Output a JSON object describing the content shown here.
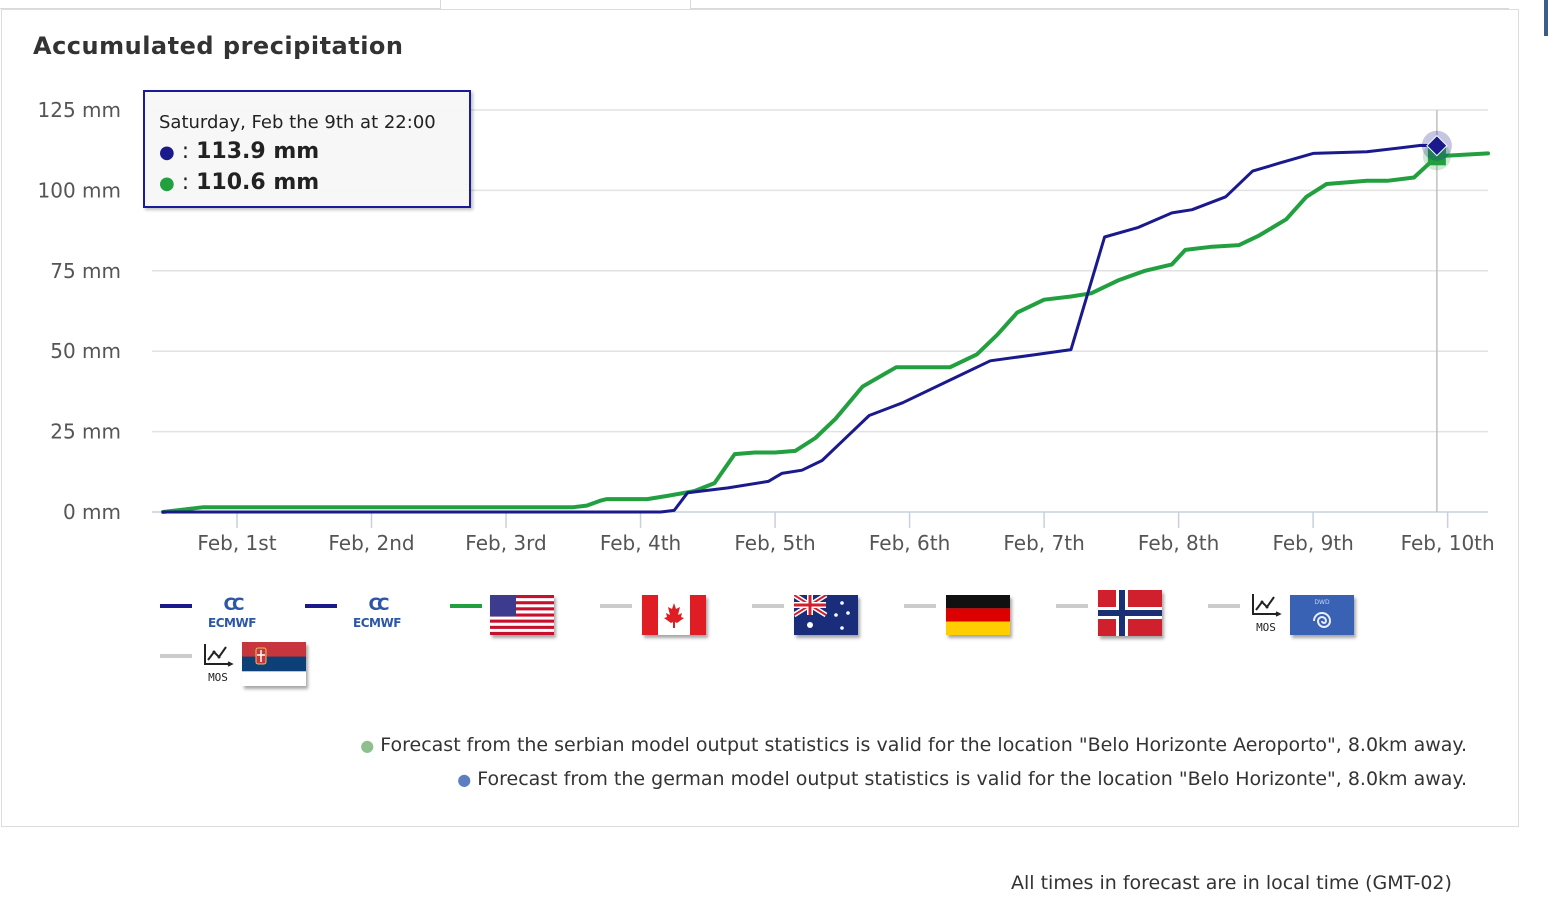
{
  "title": "Accumulated precipitation",
  "tooltip": {
    "date": "Saturday, Feb the 9th at 22:00",
    "rows": [
      {
        "bullet": "●",
        "sep": " : ",
        "value": "113.9",
        "unit": " mm",
        "color": "#1a1a8c"
      },
      {
        "bullet": "●",
        "sep": " : ",
        "value": "110.6",
        "unit": " mm",
        "color": "#22a040"
      }
    ]
  },
  "chart_data": {
    "type": "line",
    "title": "Accumulated precipitation",
    "ylabel": "",
    "yunit": "mm",
    "ylim": [
      0,
      125
    ],
    "yticks": [
      0,
      25,
      50,
      75,
      100,
      125
    ],
    "ytick_labels": [
      "0 mm",
      "25 mm",
      "50 mm",
      "75 mm",
      "100 mm",
      "125 mm"
    ],
    "xlim": [
      0.45,
      10.3
    ],
    "xticks": [
      1,
      2,
      3,
      4,
      5,
      6,
      7,
      8,
      9,
      10
    ],
    "xtick_labels": [
      "Feb, 1st",
      "Feb, 2nd",
      "Feb, 3rd",
      "Feb, 4th",
      "Feb, 5th",
      "Feb, 6th",
      "Feb, 7th",
      "Feb, 8th",
      "Feb, 9th",
      "Feb, 10th"
    ],
    "grid": true,
    "crosshair_x": 9.92,
    "series": [
      {
        "color": "#1a1a8c",
        "x": [
          0.45,
          0.95,
          3.7,
          4.15,
          4.25,
          4.35,
          4.65,
          4.95,
          5.05,
          5.2,
          5.35,
          5.5,
          5.7,
          5.95,
          6.3,
          6.6,
          6.95,
          7.2,
          7.45,
          7.7,
          7.95,
          8.1,
          8.35,
          8.55,
          8.75,
          9.0,
          9.4,
          9.8,
          9.92
        ],
        "y": [
          0,
          0,
          0,
          0,
          0.5,
          6,
          7.5,
          9.5,
          12,
          13,
          16,
          22,
          30,
          34,
          41,
          47,
          49,
          50.5,
          85.5,
          88.5,
          93,
          94,
          98,
          106,
          108.5,
          111.5,
          112,
          114,
          113.9
        ]
      },
      {
        "color": "#22a040",
        "x": [
          0.45,
          0.75,
          3.5,
          3.6,
          3.7,
          3.75,
          3.9,
          4.05,
          4.2,
          4.4,
          4.55,
          4.7,
          4.85,
          5.0,
          5.15,
          5.3,
          5.45,
          5.65,
          5.9,
          6.0,
          6.3,
          6.5,
          6.65,
          6.8,
          7.0,
          7.2,
          7.35,
          7.55,
          7.75,
          7.95,
          8.05,
          8.25,
          8.45,
          8.6,
          8.8,
          8.95,
          9.1,
          9.4,
          9.55,
          9.75,
          9.92,
          10.3
        ],
        "y": [
          0,
          1.5,
          1.5,
          2,
          3.5,
          4,
          4,
          4,
          5,
          6.5,
          9,
          18,
          18.5,
          18.5,
          19,
          23,
          29,
          39,
          45,
          45,
          45,
          49,
          55,
          62,
          66,
          67,
          68,
          72,
          75,
          77,
          81.5,
          82.5,
          83,
          86,
          91,
          98,
          102,
          103,
          103,
          104,
          110.6,
          111.5
        ]
      }
    ]
  },
  "legend": {
    "items": [
      {
        "name": "ecmwf-1",
        "line_color": "#1a1a8c",
        "logo_text": "ECMWF",
        "logo_mark": "CC"
      },
      {
        "name": "ecmwf-2",
        "line_color": "#1a1a8c",
        "logo_text": "ECMWF",
        "logo_mark": "CC"
      },
      {
        "name": "usa-flag",
        "line_color": "#22a040"
      },
      {
        "name": "canada-flag",
        "line_color": "#cccccc"
      },
      {
        "name": "australia-flag",
        "line_color": "#cccccc"
      },
      {
        "name": "germany-flag",
        "line_color": "#cccccc"
      },
      {
        "name": "norway-flag",
        "line_color": "#cccccc"
      },
      {
        "name": "mos-dwd",
        "line_color": "#cccccc",
        "mos_text": "MOS",
        "logo_text": "DWD"
      },
      {
        "name": "mos-serbia",
        "line_color": "#cccccc",
        "mos_text": "MOS"
      }
    ]
  },
  "notes": [
    {
      "bullet": "●",
      "color": "#8fbf8f",
      "text": "Forecast from the serbian model output statistics is valid for the location \"Belo Horizonte Aeroporto\", 8.0km away."
    },
    {
      "bullet": "●",
      "color": "#5b7fc0",
      "text": "Forecast from the german model output statistics is valid for the location \"Belo Horizonte\", 8.0km away."
    }
  ],
  "footer": "All times in forecast are in local time (GMT-02)"
}
